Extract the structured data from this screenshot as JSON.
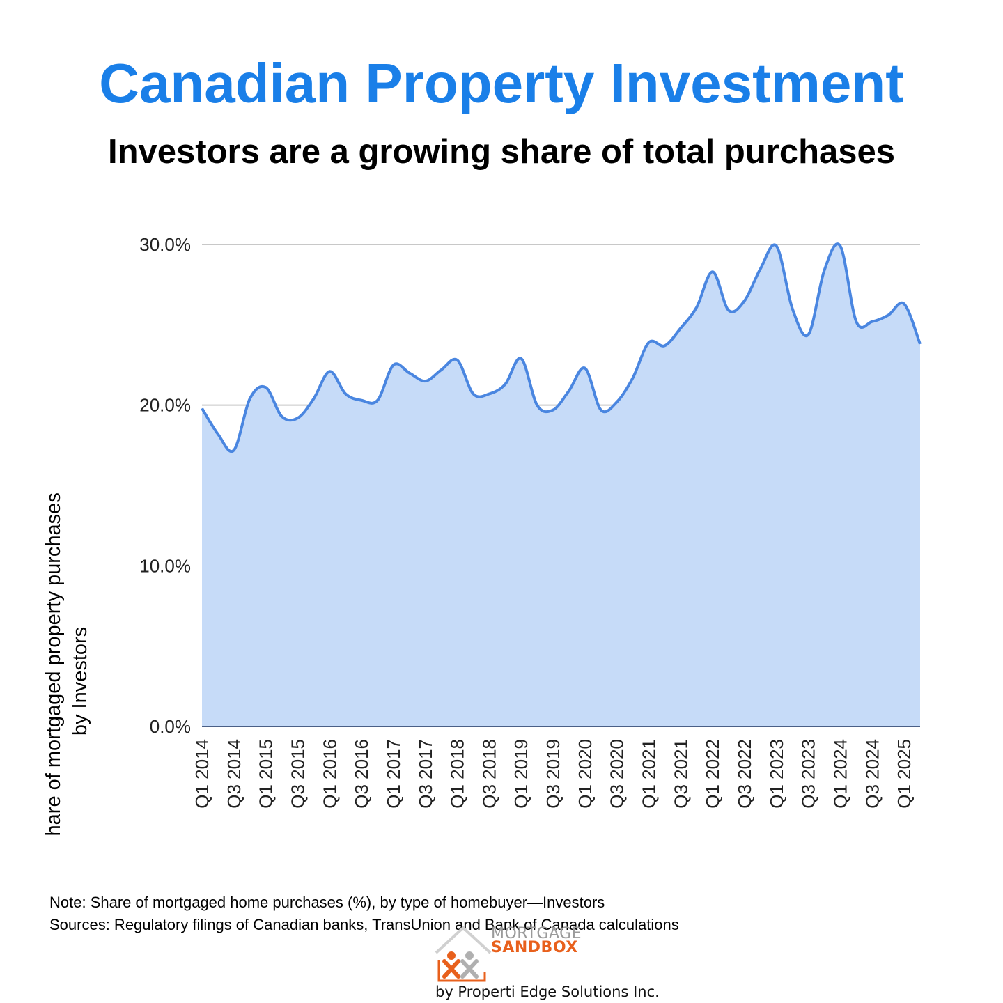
{
  "title": "Canadian Property Investment",
  "subtitle": "Investors are a growing share of total purchases",
  "notes": {
    "note": "Note: Share of mortgaged home purchases (%),  by type of homebuyer—Investors",
    "sources": "Sources: Regulatory filings of Canadian banks, TransUnion and Bank of Canada calculations"
  },
  "logo": {
    "word1": "MORTGAGE",
    "word2": "SANDBOX",
    "tagline": "by Properti Edge Solutions Inc."
  },
  "colors": {
    "title": "#1a7fe8",
    "line": "#4a86e0",
    "fill": "#c6dbf8",
    "grid": "#c8c8c8"
  },
  "chart_data": {
    "type": "area",
    "title": "",
    "xlabel": "",
    "ylabel_line1": "% share of mortgaged property purchases",
    "ylabel_line2": "by Investors",
    "ylim": [
      0,
      30
    ],
    "yticks": [
      0,
      10,
      20,
      30
    ],
    "ytick_labels": [
      "0.0%",
      "10.0%",
      "20.0%",
      "30.0%"
    ],
    "grid": true,
    "x": [
      "Q1 2014",
      "Q2 2014",
      "Q3 2014",
      "Q4 2014",
      "Q1 2015",
      "Q2 2015",
      "Q3 2015",
      "Q4 2015",
      "Q1 2016",
      "Q2 2016",
      "Q3 2016",
      "Q4 2016",
      "Q1 2017",
      "Q2 2017",
      "Q3 2017",
      "Q4 2017",
      "Q1 2018",
      "Q2 2018",
      "Q3 2018",
      "Q4 2018",
      "Q1 2019",
      "Q2 2019",
      "Q3 2019",
      "Q4 2019",
      "Q1 2020",
      "Q2 2020",
      "Q3 2020",
      "Q4 2020",
      "Q1 2021",
      "Q2 2021",
      "Q3 2021",
      "Q4 2021",
      "Q1 2022",
      "Q2 2022",
      "Q3 2022",
      "Q4 2022",
      "Q1 2023",
      "Q2 2023",
      "Q3 2023",
      "Q4 2023",
      "Q1 2024",
      "Q2 2024",
      "Q3 2024",
      "Q4 2024",
      "Q1 2025",
      "Q2 2025"
    ],
    "xtick_labels": [
      "Q1 2014",
      "Q3 2014",
      "Q1 2015",
      "Q3 2015",
      "Q1 2016",
      "Q3 2016",
      "Q1 2017",
      "Q3 2017",
      "Q1 2018",
      "Q3 2018",
      "Q1 2019",
      "Q3 2019",
      "Q1 2020",
      "Q3 2020",
      "Q1 2021",
      "Q3 2021",
      "Q1 2022",
      "Q3 2022",
      "Q1 2023",
      "Q3 2023",
      "Q1 2024",
      "Q3 2024",
      "Q1 2025"
    ],
    "series": [
      {
        "name": "Investors",
        "values": [
          19.8,
          18.2,
          17.2,
          20.4,
          21.1,
          19.3,
          19.2,
          20.4,
          22.1,
          20.7,
          20.3,
          20.3,
          22.5,
          22.0,
          21.5,
          22.2,
          22.8,
          20.7,
          20.7,
          21.3,
          22.9,
          20.0,
          19.7,
          20.9,
          22.3,
          19.7,
          20.2,
          21.7,
          23.9,
          23.7,
          24.8,
          26.1,
          28.3,
          25.9,
          26.5,
          28.5,
          29.9,
          26.0,
          24.4,
          28.4,
          29.9,
          25.2,
          25.2,
          25.6,
          26.3,
          23.8
        ]
      }
    ]
  }
}
